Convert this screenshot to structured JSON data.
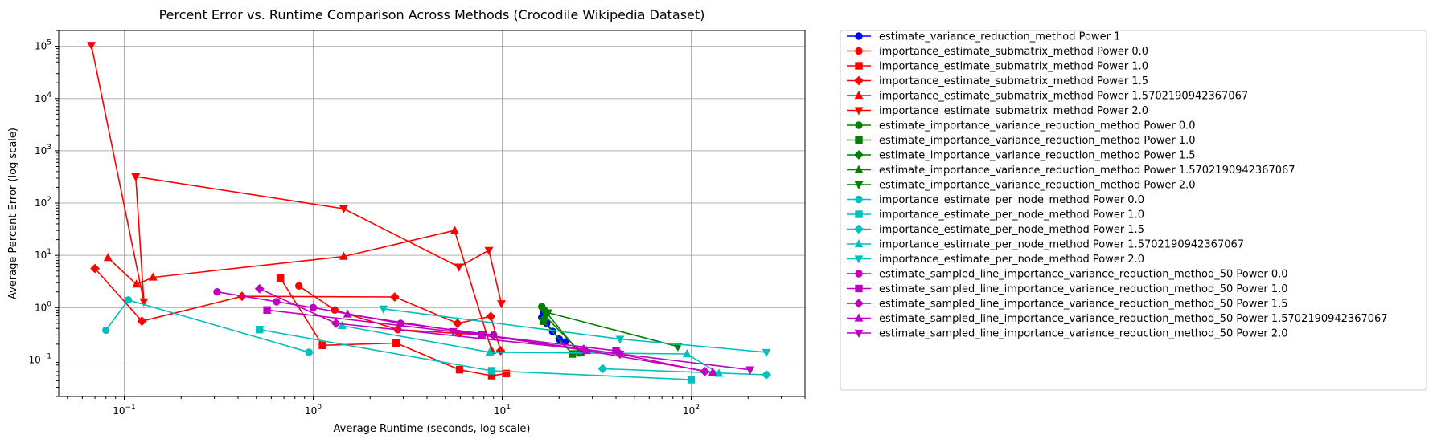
{
  "chart_data": {
    "type": "line",
    "title": "Percent Error vs. Runtime Comparison Across Methods (Crocodile Wikipedia Dataset)",
    "xlabel": "Average Runtime (seconds, log scale)",
    "ylabel": "Average Percent Error (log scale)",
    "xscale": "log",
    "yscale": "log",
    "xlim": [
      0.045,
      400
    ],
    "ylim": [
      0.02,
      200000
    ],
    "x_ticks": [
      {
        "base": "10",
        "exp": "−1",
        "value": 0.1
      },
      {
        "base": "10",
        "exp": "0",
        "value": 1
      },
      {
        "base": "10",
        "exp": "1",
        "value": 10
      },
      {
        "base": "10",
        "exp": "2",
        "value": 100
      }
    ],
    "y_ticks": [
      {
        "base": "10",
        "exp": "−1",
        "value": 0.1
      },
      {
        "base": "10",
        "exp": "0",
        "value": 1
      },
      {
        "base": "10",
        "exp": "1",
        "value": 10
      },
      {
        "base": "10",
        "exp": "2",
        "value": 100
      },
      {
        "base": "10",
        "exp": "3",
        "value": 1000
      },
      {
        "base": "10",
        "exp": "4",
        "value": 10000
      },
      {
        "base": "10",
        "exp": "5",
        "value": 100000
      }
    ],
    "grid": true,
    "legend_position": "outside-right",
    "series": [
      {
        "name": "estimate_variance_reduction_method Power 1",
        "color": "#0000ff",
        "marker": "circle",
        "x": [
          16.2,
          16.5,
          17.2,
          18.5,
          20.0,
          21.5
        ],
        "y": [
          0.65,
          0.8,
          0.5,
          0.35,
          0.25,
          0.22
        ]
      },
      {
        "name": "importance_estimate_submatrix_method Power 0.0",
        "color": "#ff0000",
        "marker": "circle",
        "x": [
          0.84,
          1.3,
          2.8,
          5.9,
          9.0
        ],
        "y": [
          2.6,
          0.9,
          0.38,
          0.32,
          0.3
        ]
      },
      {
        "name": "importance_estimate_submatrix_method Power 1.0",
        "color": "#ff0000",
        "marker": "square",
        "x": [
          0.67,
          1.12,
          2.75,
          5.95,
          8.8,
          10.5
        ],
        "y": [
          3.7,
          0.19,
          0.21,
          0.065,
          0.05,
          0.055
        ]
      },
      {
        "name": "importance_estimate_submatrix_method Power 1.5",
        "color": "#ff0000",
        "marker": "diamond",
        "x": [
          0.07,
          0.124,
          0.42,
          2.7,
          5.8,
          8.7,
          9.8
        ],
        "y": [
          5.6,
          0.55,
          1.65,
          1.6,
          0.5,
          0.68,
          0.15
        ]
      },
      {
        "name": "importance_estimate_submatrix_method Power 1.5702190942367067",
        "color": "#ff0000",
        "marker": "triangle-up",
        "x": [
          0.082,
          0.116,
          0.142,
          1.45,
          5.6,
          8.8
        ],
        "y": [
          9,
          2.8,
          3.8,
          9.5,
          30,
          0.15
        ]
      },
      {
        "name": "importance_estimate_submatrix_method Power 2.0",
        "color": "#ff0000",
        "marker": "triangle-down",
        "x": [
          0.067,
          0.127,
          0.115,
          1.45,
          5.9,
          8.5,
          9.9
        ],
        "y": [
          105000,
          1.3,
          320,
          78,
          6,
          12.5,
          1.2
        ]
      },
      {
        "name": "estimate_importance_variance_reduction_method Power 0.0",
        "color": "#008000",
        "marker": "circle",
        "x": [
          16.2
        ],
        "y": [
          1.05
        ]
      },
      {
        "name": "estimate_importance_variance_reduction_method Power 1.0",
        "color": "#008000",
        "marker": "square",
        "x": [
          16.5,
          23.5
        ],
        "y": [
          0.55,
          0.13
        ]
      },
      {
        "name": "estimate_importance_variance_reduction_method Power 1.5",
        "color": "#008000",
        "marker": "diamond",
        "x": [
          16.5,
          25.5
        ],
        "y": [
          0.95,
          0.14
        ]
      },
      {
        "name": "estimate_importance_variance_reduction_method Power 1.5702190942367067",
        "color": "#008000",
        "marker": "triangle-up",
        "x": [
          16.8,
          26.0
        ],
        "y": [
          0.7,
          0.14
        ]
      },
      {
        "name": "estimate_importance_variance_reduction_method Power 2.0",
        "color": "#008000",
        "marker": "triangle-down",
        "x": [
          17.5,
          85
        ],
        "y": [
          0.8,
          0.18
        ]
      },
      {
        "name": "importance_estimate_per_node_method Power 0.0",
        "color": "#00bfbf",
        "marker": "circle",
        "x": [
          0.08,
          0.105,
          0.95
        ],
        "y": [
          0.37,
          1.4,
          0.14
        ]
      },
      {
        "name": "importance_estimate_per_node_method Power 1.0",
        "color": "#00bfbf",
        "marker": "square",
        "x": [
          0.52,
          8.8,
          100
        ],
        "y": [
          0.38,
          0.062,
          0.042
        ]
      },
      {
        "name": "importance_estimate_per_node_method Power 1.5",
        "color": "#00bfbf",
        "marker": "diamond",
        "x": [
          34,
          250
        ],
        "y": [
          0.068,
          0.052
        ]
      },
      {
        "name": "importance_estimate_per_node_method Power 1.5702190942367067",
        "color": "#00bfbf",
        "marker": "triangle-up",
        "x": [
          1.42,
          8.6,
          95,
          140
        ],
        "y": [
          0.45,
          0.14,
          0.13,
          0.055
        ]
      },
      {
        "name": "importance_estimate_per_node_method Power 2.0",
        "color": "#00bfbf",
        "marker": "triangle-down",
        "x": [
          2.35,
          42,
          250
        ],
        "y": [
          0.95,
          0.25,
          0.14
        ]
      },
      {
        "name": "estimate_sampled_line_importance_variance_reduction_method_50 Power 0.0",
        "color": "#bf00bf",
        "marker": "circle",
        "x": [
          0.31,
          0.64,
          1.0,
          2.9,
          9.0
        ],
        "y": [
          2.0,
          1.3,
          1.0,
          0.5,
          0.3
        ]
      },
      {
        "name": "estimate_sampled_line_importance_variance_reduction_method_50 Power 1.0",
        "color": "#bf00bf",
        "marker": "square",
        "x": [
          0.57,
          7.8,
          40
        ],
        "y": [
          0.9,
          0.3,
          0.15
        ]
      },
      {
        "name": "estimate_sampled_line_importance_variance_reduction_method_50 Power 1.5",
        "color": "#bf00bf",
        "marker": "diamond",
        "x": [
          0.52,
          1.32,
          27,
          42,
          118
        ],
        "y": [
          2.3,
          0.5,
          0.16,
          0.13,
          0.06
        ]
      },
      {
        "name": "estimate_sampled_line_importance_variance_reduction_method_50 Power 1.5702190942367067",
        "color": "#bf00bf",
        "marker": "triangle-up",
        "x": [
          1.52,
          28,
          130
        ],
        "y": [
          0.75,
          0.15,
          0.058
        ]
      },
      {
        "name": "estimate_sampled_line_importance_variance_reduction_method_50 Power 2.0",
        "color": "#bf00bf",
        "marker": "triangle-down",
        "x": [
          5.5,
          42,
          205
        ],
        "y": [
          0.35,
          0.13,
          0.065
        ]
      }
    ]
  }
}
